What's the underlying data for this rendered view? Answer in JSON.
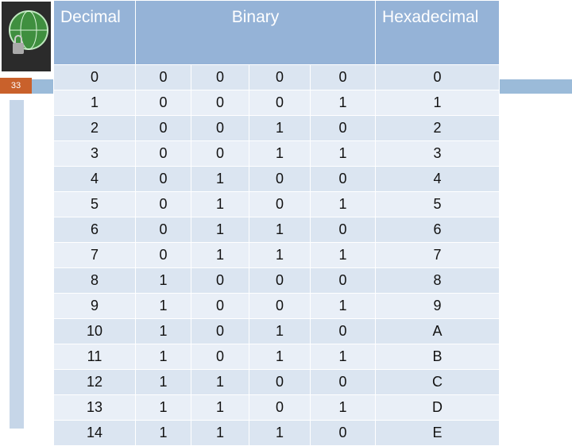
{
  "slide_number": "33",
  "table": {
    "header": [
      "Decimal",
      "Binary",
      "Hexadecimal"
    ],
    "rows": [
      [
        "0",
        "0",
        "0",
        "0",
        "0",
        "0"
      ],
      [
        "1",
        "0",
        "0",
        "0",
        "1",
        "1"
      ],
      [
        "2",
        "0",
        "0",
        "1",
        "0",
        "2"
      ],
      [
        "3",
        "0",
        "0",
        "1",
        "1",
        "3"
      ],
      [
        "4",
        "0",
        "1",
        "0",
        "0",
        "4"
      ],
      [
        "5",
        "0",
        "1",
        "0",
        "1",
        "5"
      ],
      [
        "6",
        "0",
        "1",
        "1",
        "0",
        "6"
      ],
      [
        "7",
        "0",
        "1",
        "1",
        "1",
        "7"
      ],
      [
        "8",
        "1",
        "0",
        "0",
        "0",
        "8"
      ],
      [
        "9",
        "1",
        "0",
        "0",
        "1",
        "9"
      ],
      [
        "10",
        "1",
        "0",
        "1",
        "0",
        "A"
      ],
      [
        "11",
        "1",
        "0",
        "1",
        "1",
        "B"
      ],
      [
        "12",
        "1",
        "1",
        "0",
        "0",
        "C"
      ],
      [
        "13",
        "1",
        "1",
        "0",
        "1",
        "D"
      ],
      [
        "14",
        "1",
        "1",
        "1",
        "0",
        "E"
      ]
    ]
  }
}
